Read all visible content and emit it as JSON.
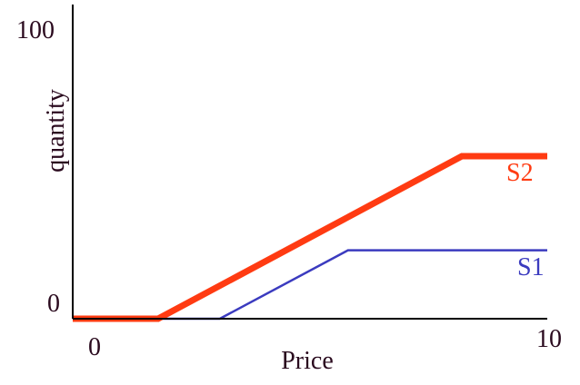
{
  "chart_data": {
    "type": "line",
    "title": "",
    "xlabel": "Price",
    "ylabel": "quantity",
    "xlim": [
      0,
      10
    ],
    "ylim": [
      0,
      100
    ],
    "x_tick_labels": [
      "0",
      "10"
    ],
    "y_tick_labels": [
      "0",
      "100"
    ],
    "grid": false,
    "legend": "none",
    "series": [
      {
        "name": "S1",
        "color": "#3b3bbf",
        "points": [
          {
            "x": 1.8,
            "y": 0
          },
          {
            "x": 3.1,
            "y": 0
          },
          {
            "x": 5.8,
            "y": 24
          },
          {
            "x": 10,
            "y": 24
          }
        ]
      },
      {
        "name": "S2",
        "color": "#ff3b12",
        "points": [
          {
            "x": 0,
            "y": 0
          },
          {
            "x": 1.8,
            "y": 0
          },
          {
            "x": 8.2,
            "y": 57
          },
          {
            "x": 10,
            "y": 57
          }
        ]
      }
    ]
  }
}
